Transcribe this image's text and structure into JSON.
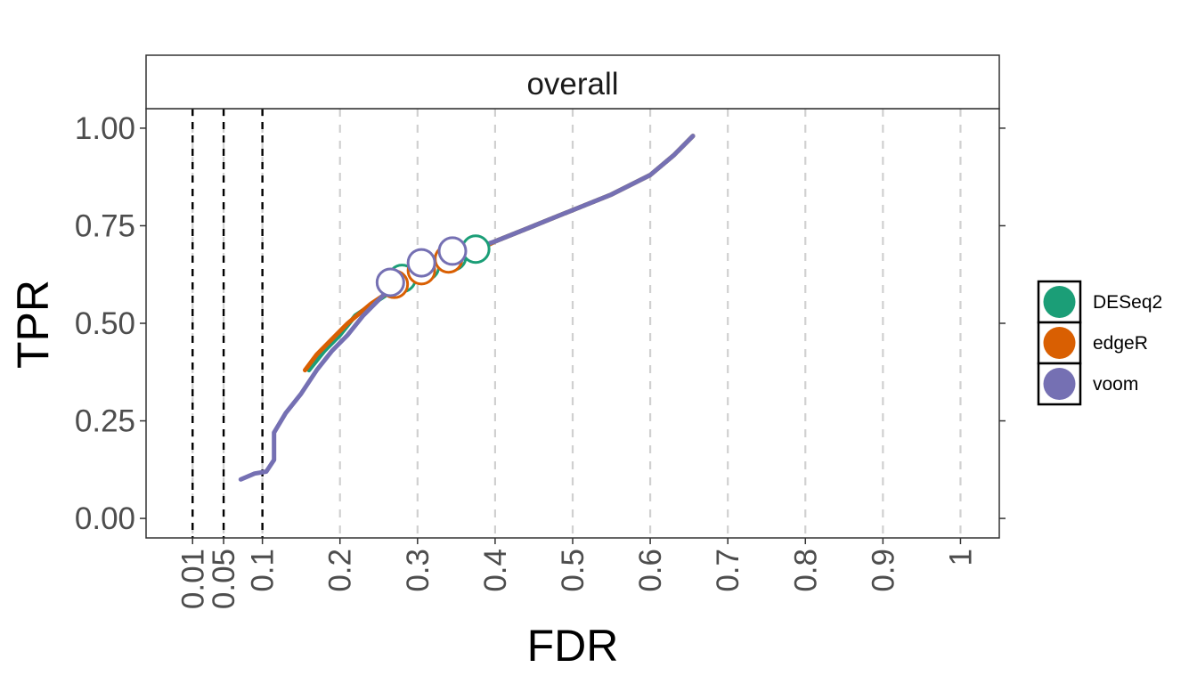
{
  "chart_data": {
    "type": "line",
    "facet_title": "overall",
    "xlabel": "FDR",
    "ylabel": "TPR",
    "xlim": [
      -0.05,
      1.05
    ],
    "ylim": [
      -0.05,
      1.05
    ],
    "x_ticks": [
      0.01,
      0.05,
      0.1,
      0.2,
      0.3,
      0.4,
      0.5,
      0.6,
      0.7,
      0.8,
      0.9,
      1
    ],
    "x_tick_labels": [
      "0.01",
      "0.05",
      "0.1",
      "0.2",
      "0.3",
      "0.4",
      "0.5",
      "0.6",
      "0.7",
      "0.8",
      "0.9",
      "1"
    ],
    "y_ticks": [
      0,
      0.25,
      0.5,
      0.75,
      1
    ],
    "y_tick_labels": [
      "0.00",
      "0.25",
      "0.50",
      "0.75",
      "1.00"
    ],
    "grid": "vertical dashed",
    "threshold_lines": [
      0.01,
      0.05,
      0.1
    ],
    "legend_position": "right",
    "series": [
      {
        "name": "DESeq2",
        "color": "#1b9e77",
        "x": [
          0.16,
          0.18,
          0.2,
          0.22,
          0.25,
          0.28,
          0.32,
          0.36,
          0.4,
          0.45,
          0.5,
          0.55,
          0.6,
          0.63,
          0.655
        ],
        "y": [
          0.38,
          0.43,
          0.47,
          0.52,
          0.56,
          0.6,
          0.64,
          0.67,
          0.71,
          0.75,
          0.79,
          0.83,
          0.88,
          0.93,
          0.98
        ],
        "points": [
          {
            "x": 0.28,
            "y": 0.615
          },
          {
            "x": 0.31,
            "y": 0.645
          },
          {
            "x": 0.345,
            "y": 0.67
          },
          {
            "x": 0.375,
            "y": 0.69
          }
        ]
      },
      {
        "name": "edgeR",
        "color": "#d95f02",
        "x": [
          0.155,
          0.17,
          0.19,
          0.21,
          0.24,
          0.27,
          0.31,
          0.35,
          0.4,
          0.45,
          0.5,
          0.55,
          0.6,
          0.63,
          0.655
        ],
        "y": [
          0.38,
          0.42,
          0.46,
          0.5,
          0.55,
          0.59,
          0.63,
          0.66,
          0.71,
          0.75,
          0.79,
          0.83,
          0.88,
          0.93,
          0.98
        ],
        "points": [
          {
            "x": 0.27,
            "y": 0.6
          },
          {
            "x": 0.305,
            "y": 0.635
          },
          {
            "x": 0.34,
            "y": 0.665
          }
        ]
      },
      {
        "name": "voom",
        "color": "#7570b3",
        "x": [
          0.072,
          0.09,
          0.105,
          0.115,
          0.115,
          0.13,
          0.15,
          0.17,
          0.19,
          0.21,
          0.23,
          0.26,
          0.3,
          0.34,
          0.4,
          0.45,
          0.5,
          0.55,
          0.6,
          0.63,
          0.655
        ],
        "y": [
          0.1,
          0.115,
          0.12,
          0.15,
          0.22,
          0.27,
          0.32,
          0.38,
          0.43,
          0.47,
          0.52,
          0.58,
          0.63,
          0.67,
          0.71,
          0.75,
          0.79,
          0.83,
          0.88,
          0.93,
          0.98
        ],
        "points": [
          {
            "x": 0.265,
            "y": 0.605
          },
          {
            "x": 0.305,
            "y": 0.655
          },
          {
            "x": 0.345,
            "y": 0.685
          }
        ]
      }
    ]
  }
}
